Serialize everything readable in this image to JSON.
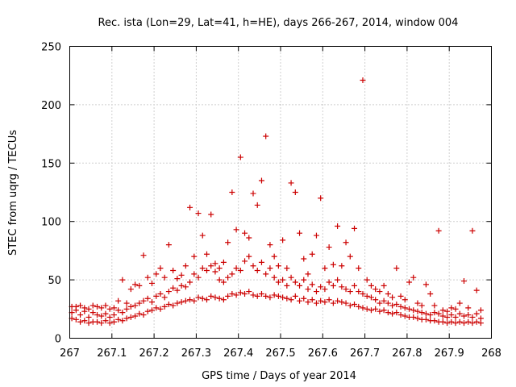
{
  "chart_data": {
    "type": "scatter",
    "title": "Rec. ista (Lon=29, Lat=41, h=HE), days 266-267, 2014, window 004",
    "xlabel": "GPS time / Days of year 2014",
    "ylabel": "STEC from uqrg / TECUs",
    "xlim": [
      267,
      268
    ],
    "ylim": [
      0,
      250
    ],
    "x_ticks": [
      267,
      267.1,
      267.2,
      267.3,
      267.4,
      267.5,
      267.6,
      267.7,
      267.8,
      267.9,
      268
    ],
    "x_tick_labels": [
      "267",
      "267.1",
      "267.2",
      "267.3",
      "267.4",
      "267.5",
      "267.6",
      "267.7",
      "267.8",
      "267.9",
      "268"
    ],
    "y_ticks": [
      0,
      50,
      100,
      150,
      200,
      250
    ],
    "y_tick_labels": [
      "0",
      "50",
      "100",
      "150",
      "200",
      "250"
    ],
    "grid": true,
    "marker": "+",
    "color": "#cc0000",
    "points": [
      [
        267.005,
        17
      ],
      [
        267.005,
        22
      ],
      [
        267.005,
        27
      ],
      [
        267.015,
        16
      ],
      [
        267.015,
        24
      ],
      [
        267.015,
        27
      ],
      [
        267.025,
        14
      ],
      [
        267.025,
        20
      ],
      [
        267.025,
        28
      ],
      [
        267.035,
        15
      ],
      [
        267.035,
        23
      ],
      [
        267.035,
        26
      ],
      [
        267.045,
        13
      ],
      [
        267.045,
        18
      ],
      [
        267.045,
        25
      ],
      [
        267.055,
        14
      ],
      [
        267.055,
        22
      ],
      [
        267.055,
        28
      ],
      [
        267.065,
        14
      ],
      [
        267.065,
        20
      ],
      [
        267.065,
        27
      ],
      [
        267.075,
        13
      ],
      [
        267.075,
        19
      ],
      [
        267.075,
        26
      ],
      [
        267.085,
        15
      ],
      [
        267.085,
        21
      ],
      [
        267.085,
        28
      ],
      [
        267.095,
        13
      ],
      [
        267.095,
        18
      ],
      [
        267.095,
        25
      ],
      [
        267.105,
        14
      ],
      [
        267.105,
        20
      ],
      [
        267.105,
        26
      ],
      [
        267.115,
        16
      ],
      [
        267.115,
        24
      ],
      [
        267.115,
        32
      ],
      [
        267.125,
        15
      ],
      [
        267.125,
        22
      ],
      [
        267.125,
        50
      ],
      [
        267.135,
        17
      ],
      [
        267.135,
        25
      ],
      [
        267.135,
        30
      ],
      [
        267.145,
        18
      ],
      [
        267.145,
        27
      ],
      [
        267.145,
        42
      ],
      [
        267.155,
        19
      ],
      [
        267.155,
        28
      ],
      [
        267.155,
        46
      ],
      [
        267.165,
        21
      ],
      [
        267.165,
        30
      ],
      [
        267.165,
        45
      ],
      [
        267.175,
        20
      ],
      [
        267.175,
        32
      ],
      [
        267.175,
        71
      ],
      [
        267.185,
        23
      ],
      [
        267.185,
        34
      ],
      [
        267.185,
        52
      ],
      [
        267.195,
        24
      ],
      [
        267.195,
        31
      ],
      [
        267.195,
        47
      ],
      [
        267.205,
        26
      ],
      [
        267.205,
        36
      ],
      [
        267.205,
        55
      ],
      [
        267.215,
        25
      ],
      [
        267.215,
        38
      ],
      [
        267.215,
        60
      ],
      [
        267.225,
        27
      ],
      [
        267.225,
        35
      ],
      [
        267.225,
        52
      ],
      [
        267.235,
        29
      ],
      [
        267.235,
        40
      ],
      [
        267.235,
        80
      ],
      [
        267.245,
        28
      ],
      [
        267.245,
        43
      ],
      [
        267.245,
        58
      ],
      [
        267.255,
        30
      ],
      [
        267.255,
        41
      ],
      [
        267.255,
        51
      ],
      [
        267.265,
        31
      ],
      [
        267.265,
        45
      ],
      [
        267.265,
        54
      ],
      [
        267.275,
        32
      ],
      [
        267.275,
        44
      ],
      [
        267.275,
        62
      ],
      [
        267.285,
        33
      ],
      [
        267.285,
        48
      ],
      [
        267.285,
        112
      ],
      [
        267.295,
        32
      ],
      [
        267.295,
        55
      ],
      [
        267.295,
        70
      ],
      [
        267.305,
        35
      ],
      [
        267.305,
        52
      ],
      [
        267.305,
        107
      ],
      [
        267.315,
        34
      ],
      [
        267.315,
        60
      ],
      [
        267.315,
        88
      ],
      [
        267.325,
        33
      ],
      [
        267.325,
        58
      ],
      [
        267.325,
        72
      ],
      [
        267.335,
        36
      ],
      [
        267.335,
        62
      ],
      [
        267.335,
        106
      ],
      [
        267.345,
        35
      ],
      [
        267.345,
        57
      ],
      [
        267.345,
        64
      ],
      [
        267.355,
        34
      ],
      [
        267.355,
        50
      ],
      [
        267.355,
        60
      ],
      [
        267.365,
        33
      ],
      [
        267.365,
        48
      ],
      [
        267.365,
        65
      ],
      [
        267.375,
        36
      ],
      [
        267.375,
        52
      ],
      [
        267.375,
        82
      ],
      [
        267.385,
        38
      ],
      [
        267.385,
        55
      ],
      [
        267.385,
        125
      ],
      [
        267.395,
        37
      ],
      [
        267.395,
        60
      ],
      [
        267.395,
        93
      ],
      [
        267.405,
        39
      ],
      [
        267.405,
        58
      ],
      [
        267.405,
        155
      ],
      [
        267.415,
        38
      ],
      [
        267.415,
        66
      ],
      [
        267.415,
        90
      ],
      [
        267.425,
        40
      ],
      [
        267.425,
        70
      ],
      [
        267.425,
        86
      ],
      [
        267.435,
        37
      ],
      [
        267.435,
        62
      ],
      [
        267.435,
        124
      ],
      [
        267.445,
        36
      ],
      [
        267.445,
        58
      ],
      [
        267.445,
        114
      ],
      [
        267.455,
        38
      ],
      [
        267.455,
        65
      ],
      [
        267.455,
        135
      ],
      [
        267.465,
        36
      ],
      [
        267.465,
        55
      ],
      [
        267.465,
        173
      ],
      [
        267.475,
        35
      ],
      [
        267.475,
        60
      ],
      [
        267.475,
        80
      ],
      [
        267.485,
        37
      ],
      [
        267.485,
        52
      ],
      [
        267.485,
        70
      ],
      [
        267.495,
        36
      ],
      [
        267.495,
        48
      ],
      [
        267.495,
        62
      ],
      [
        267.505,
        35
      ],
      [
        267.505,
        50
      ],
      [
        267.505,
        84
      ],
      [
        267.515,
        34
      ],
      [
        267.515,
        45
      ],
      [
        267.515,
        60
      ],
      [
        267.525,
        33
      ],
      [
        267.525,
        52
      ],
      [
        267.525,
        133
      ],
      [
        267.535,
        36
      ],
      [
        267.535,
        48
      ],
      [
        267.535,
        125
      ],
      [
        267.545,
        32
      ],
      [
        267.545,
        45
      ],
      [
        267.545,
        90
      ],
      [
        267.555,
        34
      ],
      [
        267.555,
        50
      ],
      [
        267.555,
        68
      ],
      [
        267.565,
        31
      ],
      [
        267.565,
        42
      ],
      [
        267.565,
        55
      ],
      [
        267.575,
        33
      ],
      [
        267.575,
        46
      ],
      [
        267.575,
        72
      ],
      [
        267.585,
        30
      ],
      [
        267.585,
        40
      ],
      [
        267.585,
        88
      ],
      [
        267.595,
        32
      ],
      [
        267.595,
        44
      ],
      [
        267.595,
        120
      ],
      [
        267.605,
        31
      ],
      [
        267.605,
        42
      ],
      [
        267.605,
        60
      ],
      [
        267.615,
        33
      ],
      [
        267.615,
        48
      ],
      [
        267.615,
        78
      ],
      [
        267.625,
        30
      ],
      [
        267.625,
        45
      ],
      [
        267.625,
        63
      ],
      [
        267.635,
        32
      ],
      [
        267.635,
        50
      ],
      [
        267.635,
        96
      ],
      [
        267.645,
        31
      ],
      [
        267.645,
        44
      ],
      [
        267.645,
        62
      ],
      [
        267.655,
        30
      ],
      [
        267.655,
        42
      ],
      [
        267.655,
        82
      ],
      [
        267.665,
        28
      ],
      [
        267.665,
        40
      ],
      [
        267.665,
        70
      ],
      [
        267.675,
        29
      ],
      [
        267.675,
        45
      ],
      [
        267.675,
        94
      ],
      [
        267.685,
        27
      ],
      [
        267.685,
        40
      ],
      [
        267.685,
        60
      ],
      [
        267.695,
        26
      ],
      [
        267.695,
        38
      ],
      [
        267.695,
        221
      ],
      [
        267.705,
        25
      ],
      [
        267.705,
        36
      ],
      [
        267.705,
        50
      ],
      [
        267.715,
        24
      ],
      [
        267.715,
        35
      ],
      [
        267.715,
        45
      ],
      [
        267.725,
        25
      ],
      [
        267.725,
        33
      ],
      [
        267.725,
        42
      ],
      [
        267.735,
        23
      ],
      [
        267.735,
        30
      ],
      [
        267.735,
        40
      ],
      [
        267.745,
        24
      ],
      [
        267.745,
        32
      ],
      [
        267.745,
        45
      ],
      [
        267.755,
        22
      ],
      [
        267.755,
        30
      ],
      [
        267.755,
        38
      ],
      [
        267.765,
        21
      ],
      [
        267.765,
        28
      ],
      [
        267.765,
        35
      ],
      [
        267.775,
        22
      ],
      [
        267.775,
        29
      ],
      [
        267.775,
        60
      ],
      [
        267.785,
        20
      ],
      [
        267.785,
        27
      ],
      [
        267.785,
        36
      ],
      [
        267.795,
        19
      ],
      [
        267.795,
        26
      ],
      [
        267.795,
        33
      ],
      [
        267.805,
        18
      ],
      [
        267.805,
        25
      ],
      [
        267.805,
        48
      ],
      [
        267.815,
        18
      ],
      [
        267.815,
        24
      ],
      [
        267.815,
        52
      ],
      [
        267.825,
        17
      ],
      [
        267.825,
        23
      ],
      [
        267.825,
        30
      ],
      [
        267.835,
        16
      ],
      [
        267.835,
        22
      ],
      [
        267.835,
        28
      ],
      [
        267.845,
        16
      ],
      [
        267.845,
        21
      ],
      [
        267.845,
        46
      ],
      [
        267.855,
        15
      ],
      [
        267.855,
        20
      ],
      [
        267.855,
        38
      ],
      [
        267.865,
        15
      ],
      [
        267.865,
        22
      ],
      [
        267.865,
        28
      ],
      [
        267.875,
        14
      ],
      [
        267.875,
        21
      ],
      [
        267.875,
        92
      ],
      [
        267.885,
        14
      ],
      [
        267.885,
        19
      ],
      [
        267.885,
        24
      ],
      [
        267.895,
        13
      ],
      [
        267.895,
        18
      ],
      [
        267.895,
        23
      ],
      [
        267.905,
        14
      ],
      [
        267.905,
        20
      ],
      [
        267.905,
        26
      ],
      [
        267.915,
        13
      ],
      [
        267.915,
        18
      ],
      [
        267.915,
        25
      ],
      [
        267.925,
        14
      ],
      [
        267.925,
        21
      ],
      [
        267.925,
        30
      ],
      [
        267.935,
        13
      ],
      [
        267.935,
        19
      ],
      [
        267.935,
        49
      ],
      [
        267.945,
        14
      ],
      [
        267.945,
        20
      ],
      [
        267.945,
        26
      ],
      [
        267.955,
        13
      ],
      [
        267.955,
        18
      ],
      [
        267.955,
        92
      ],
      [
        267.965,
        14
      ],
      [
        267.965,
        21
      ],
      [
        267.965,
        41
      ],
      [
        267.975,
        13
      ],
      [
        267.975,
        17
      ],
      [
        267.975,
        24
      ]
    ]
  }
}
